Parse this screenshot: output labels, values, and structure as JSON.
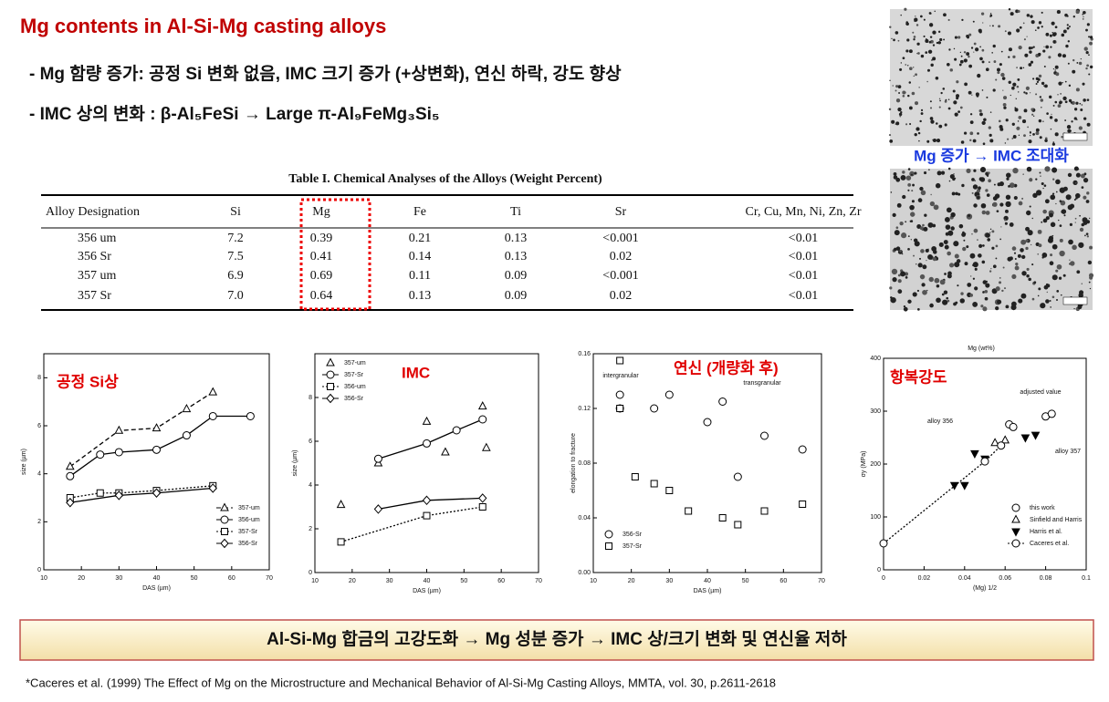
{
  "header": {
    "title": "Mg contents in Al-Si-Mg  casting alloys"
  },
  "bullets": [
    "- Mg 함량 증가: 공정 Si 변화 없음, IMC 크기 증가 (+상변화), 연신 하락, 강도 향상",
    "- IMC 상의 변화 : β-Al₅FeSi → Large π-Al₉FeMg₃Si₅"
  ],
  "table": {
    "title": "Table I.   Chemical Analyses of the Alloys (Weight Percent)",
    "columns": [
      "Alloy Designation",
      "Si",
      "Mg",
      "Fe",
      "Ti",
      "Sr",
      "Cr, Cu, Mn, Ni, Zn, Zr"
    ],
    "rows": [
      [
        "356 um",
        "7.2",
        "0.39",
        "0.21",
        "0.13",
        "<0.001",
        "<0.01"
      ],
      [
        "356 Sr",
        "7.5",
        "0.41",
        "0.14",
        "0.13",
        "0.02",
        "<0.01"
      ],
      [
        "357 um",
        "6.9",
        "0.69",
        "0.11",
        "0.09",
        "<0.001",
        "<0.01"
      ],
      [
        "357 Sr",
        "7.0",
        "0.64",
        "0.13",
        "0.09",
        "0.02",
        "<0.01"
      ]
    ]
  },
  "micrograph_caption": "Mg 증가 → IMC 조대화",
  "charts": [
    {
      "type": "scatter",
      "title": "공정 Si상",
      "x_label": "DAS (µm)",
      "y_label": "size (µm)",
      "xlim": [
        10,
        70
      ],
      "ylim": [
        0,
        9
      ],
      "xticks": [
        10,
        20,
        30,
        40,
        50,
        60,
        70
      ],
      "yticks": [
        0,
        2,
        4,
        6,
        8
      ],
      "legend": "lower-right",
      "series": [
        {
          "name": "357-um",
          "marker": "triangle",
          "line": "dashed",
          "x": [
            17,
            30,
            40,
            48,
            55
          ],
          "values": [
            4.3,
            5.8,
            5.9,
            6.7,
            7.4
          ]
        },
        {
          "name": "356-um",
          "marker": "circle",
          "line": "solid",
          "x": [
            17,
            25,
            30,
            40,
            48,
            55,
            65
          ],
          "values": [
            3.9,
            4.8,
            4.9,
            5.0,
            5.6,
            6.4,
            6.4
          ]
        },
        {
          "name": "357-Sr",
          "marker": "square",
          "line": "dotted",
          "x": [
            17,
            25,
            30,
            40,
            55
          ],
          "values": [
            3.0,
            3.2,
            3.2,
            3.3,
            3.5
          ]
        },
        {
          "name": "356-Sr",
          "marker": "diamond",
          "line": "solid",
          "x": [
            17,
            30,
            40,
            55
          ],
          "values": [
            2.8,
            3.1,
            3.2,
            3.4
          ]
        }
      ],
      "annotations": []
    },
    {
      "type": "scatter",
      "title": "IMC",
      "x_label": "DAS (µm)",
      "y_label": "size (µm)",
      "xlim": [
        10,
        70
      ],
      "ylim": [
        0,
        10
      ],
      "xticks": [
        10,
        20,
        30,
        40,
        50,
        60,
        70
      ],
      "yticks": [
        0,
        2,
        4,
        6,
        8
      ],
      "legend": "upper-left",
      "series": [
        {
          "name": "357-um",
          "marker": "triangle",
          "line": "none",
          "x": [
            17,
            27,
            40,
            45,
            55,
            56
          ],
          "values": [
            3.1,
            5.0,
            6.9,
            5.5,
            7.6,
            5.7
          ]
        },
        {
          "name": "357-Sr",
          "marker": "circle",
          "line": "solid",
          "x": [
            27,
            40,
            48,
            55
          ],
          "values": [
            5.2,
            5.9,
            6.5,
            7.0
          ]
        },
        {
          "name": "356-um",
          "marker": "square",
          "line": "dotted",
          "x": [
            17,
            40,
            55
          ],
          "values": [
            1.4,
            2.6,
            3.0
          ]
        },
        {
          "name": "356-Sr",
          "marker": "diamond",
          "line": "solid",
          "x": [
            27,
            40,
            55
          ],
          "values": [
            2.9,
            3.3,
            3.4
          ]
        }
      ],
      "annotations": []
    },
    {
      "type": "scatter",
      "title": "연신 (개량화 후)",
      "x_label": "DAS (µm)",
      "y_label": "elongation to fracture",
      "xlim": [
        10,
        70
      ],
      "ylim": [
        0,
        0.16
      ],
      "xticks": [
        10,
        20,
        30,
        40,
        50,
        60,
        70
      ],
      "yticks": [
        {
          "value": 0,
          "label": "0.00"
        },
        {
          "value": 0.04,
          "label": "0.04"
        },
        {
          "value": 0.08,
          "label": "0.08"
        },
        {
          "value": 0.12,
          "label": "0.12"
        },
        {
          "value": 0.16,
          "label": "0.16"
        }
      ],
      "legend": "lower-left",
      "series": [
        {
          "name": "356-Sr",
          "marker": "circle",
          "line": "none",
          "x": [
            17,
            17,
            26,
            30,
            40,
            44,
            48,
            55,
            65
          ],
          "values": [
            0.12,
            0.13,
            0.12,
            0.13,
            0.11,
            0.125,
            0.07,
            0.1,
            0.09
          ]
        },
        {
          "name": "357-Sr",
          "marker": "square",
          "line": "none",
          "x": [
            17,
            17,
            21,
            26,
            30,
            35,
            44,
            48,
            55,
            65
          ],
          "values": [
            0.155,
            0.12,
            0.07,
            0.065,
            0.06,
            0.045,
            0.04,
            0.035,
            0.045,
            0.05
          ]
        }
      ],
      "annotations": [
        "intergranular",
        "transgranular"
      ]
    },
    {
      "type": "scatter",
      "title": "항복강도",
      "x_label": "(Mg) 1/2",
      "y_label": "σy (MPa)",
      "xlim": [
        0,
        0.1
      ],
      "ylim": [
        0,
        400
      ],
      "xticks": [
        0,
        0.02,
        0.04,
        0.06,
        0.08,
        0.1
      ],
      "yticks": [
        0,
        100,
        200,
        300,
        400
      ],
      "legend": "lower-right",
      "series": [
        {
          "name": "this work",
          "marker": "circle",
          "line": "none",
          "x": [
            0.062,
            0.064,
            0.08,
            0.083
          ],
          "values": [
            275,
            270,
            290,
            295
          ]
        },
        {
          "name": "Sinfield and Harris",
          "marker": "triangle",
          "line": "none",
          "x": [
            0.055,
            0.06
          ],
          "values": [
            240,
            245
          ]
        },
        {
          "name": "Harris et al.",
          "marker": "tri-down",
          "line": "none",
          "x": [
            0.035,
            0.04,
            0.045,
            0.05,
            0.07,
            0.075
          ],
          "values": [
            160,
            160,
            220,
            210,
            250,
            255
          ]
        },
        {
          "name": "Caceres et al.",
          "marker": "circle",
          "line": "dotted",
          "x": [
            0,
            0.05,
            0.058
          ],
          "values": [
            50,
            205,
            235
          ]
        }
      ],
      "annotations": [
        "Mg (wt%)",
        "alloy 356",
        "alloy 357",
        "adjusted value"
      ]
    }
  ],
  "summary": "Al-Si-Mg 합금의 고강도화 → Mg 성분 증가 → IMC 상/크기 변화 및 연신율 저하",
  "footnote": "*Caceres et al. (1999) The Effect of Mg on the Microstructure and Mechanical Behavior of Al-Si-Mg Casting Alloys, MMTA, vol. 30, p.2611-2618"
}
